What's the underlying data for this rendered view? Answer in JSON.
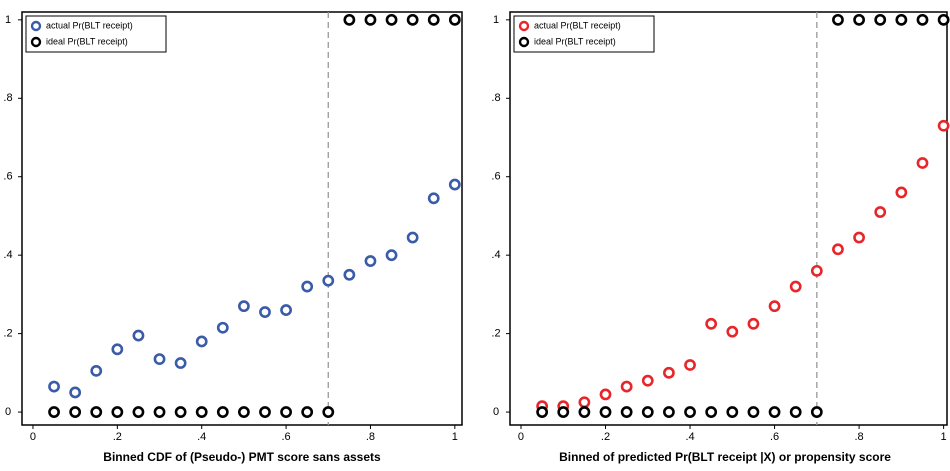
{
  "chart_data": [
    {
      "type": "scatter",
      "x_label": "Binned CDF of (Pseudo-) PMT score sans assets",
      "x": [
        0.05,
        0.1,
        0.15,
        0.2,
        0.25,
        0.3,
        0.35,
        0.4,
        0.45,
        0.5,
        0.55,
        0.6,
        0.65,
        0.7,
        0.75,
        0.8,
        0.85,
        0.9,
        0.95,
        1
      ],
      "series": [
        {
          "name": "actual Pr(BLT receipt)",
          "color": "#3a5ba8",
          "values": [
            0.065,
            0.05,
            0.105,
            0.16,
            0.195,
            0.135,
            0.125,
            0.18,
            0.215,
            0.27,
            0.255,
            0.26,
            0.32,
            0.335,
            0.35,
            0.385,
            0.4,
            0.445,
            0.545,
            0.58
          ]
        },
        {
          "name": "ideal Pr(BLT receipt)",
          "color": "#000000",
          "values": [
            0,
            0,
            0,
            0,
            0,
            0,
            0,
            0,
            0,
            0,
            0,
            0,
            0,
            0,
            1,
            1,
            1,
            1,
            1,
            1
          ]
        }
      ],
      "vline": 0.7,
      "xlim": [
        -0.026,
        1.017
      ],
      "ylim": [
        -0.033,
        1.02
      ],
      "xticks": [
        0,
        {
          "value": 0.2,
          "label": ".2"
        },
        {
          "value": 0.4,
          "label": ".4"
        },
        {
          "value": 0.6,
          "label": ".6"
        },
        {
          "value": 0.8,
          "label": ".8"
        },
        1
      ],
      "yticks": [
        0,
        {
          "value": 0.2,
          "label": ".2"
        },
        {
          "value": 0.4,
          "label": ".4"
        },
        {
          "value": 0.6,
          "label": ".6"
        },
        {
          "value": 0.8,
          "label": ".8"
        },
        1
      ],
      "legend": "upper left"
    },
    {
      "type": "scatter",
      "x_label": "Binned of predicted Pr(BLT receipt |X) or propensity score",
      "x": [
        0.05,
        0.1,
        0.15,
        0.2,
        0.25,
        0.3,
        0.35,
        0.4,
        0.45,
        0.5,
        0.55,
        0.6,
        0.65,
        0.7,
        0.75,
        0.8,
        0.85,
        0.9,
        0.95,
        1
      ],
      "series": [
        {
          "name": "actual Pr(BLT receipt)",
          "color": "#e8262a",
          "values": [
            0.015,
            0.015,
            0.025,
            0.045,
            0.065,
            0.08,
            0.1,
            0.12,
            0.225,
            0.205,
            0.225,
            0.27,
            0.32,
            0.36,
            0.415,
            0.445,
            0.51,
            0.56,
            0.635,
            0.73
          ]
        },
        {
          "name": "ideal Pr(BLT receipt)",
          "color": "#000000",
          "values": [
            0,
            0,
            0,
            0,
            0,
            0,
            0,
            0,
            0,
            0,
            0,
            0,
            0,
            0,
            1,
            1,
            1,
            1,
            1,
            1
          ]
        }
      ],
      "vline": 0.7,
      "xlim": [
        -0.026,
        1.008
      ],
      "ylim": [
        -0.033,
        1.02
      ],
      "xticks": [
        0,
        {
          "value": 0.2,
          "label": ".2"
        },
        {
          "value": 0.4,
          "label": ".4"
        },
        {
          "value": 0.6,
          "label": ".6"
        },
        {
          "value": 0.8,
          "label": ".8"
        },
        1
      ],
      "yticks": [
        0,
        {
          "value": 0.2,
          "label": ".2"
        },
        {
          "value": 0.4,
          "label": ".4"
        },
        {
          "value": 0.6,
          "label": ".6"
        },
        {
          "value": 0.8,
          "label": ".8"
        },
        1
      ],
      "legend": "upper left"
    }
  ]
}
